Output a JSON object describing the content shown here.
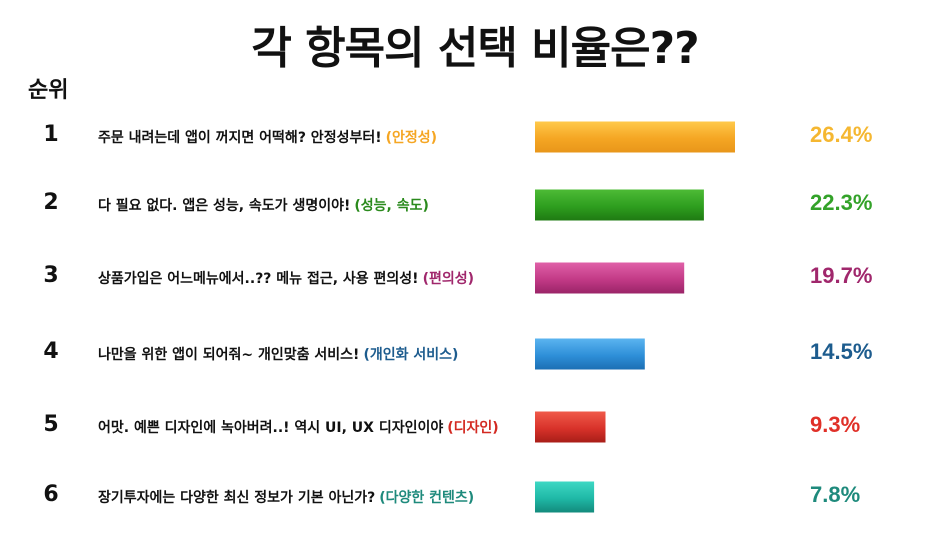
{
  "title": "각 항목의 선택 비율은??",
  "rank_header": "순위",
  "chart_data": {
    "type": "bar",
    "orientation": "horizontal",
    "title": "각 항목의 선택 비율은??",
    "xlim": [
      0,
      26.4
    ],
    "grid": false,
    "legend": "none",
    "items": [
      {
        "rank": "1",
        "text": "주문 내려는데 앱이 꺼지면 어떡해? 안정성부터!",
        "tag": "(안정성)",
        "value": 26.4,
        "label": "26.4%",
        "color": "#F5A623",
        "dark": "#E8961A",
        "light": "#FFC94A",
        "text_color": "#F5A623",
        "label_color": "#F5B731"
      },
      {
        "rank": "2",
        "text": "다 필요 없다. 앱은 성능, 속도가 생명이야!",
        "tag": "(성능, 속도)",
        "value": 22.3,
        "label": "22.3%",
        "color": "#2E9E1F",
        "dark": "#1F7A12",
        "light": "#4DBB36",
        "text_color": "#2A8A1C",
        "label_color": "#33A229"
      },
      {
        "rank": "3",
        "text": "상품가입은 어느메뉴에서..?? 메뉴 접근, 사용 편의성!",
        "tag": "(편의성)",
        "value": 19.7,
        "label": "19.7%",
        "color": "#C23A86",
        "dark": "#9A2468",
        "light": "#E060A8",
        "text_color": "#A0276C",
        "label_color": "#A0276C"
      },
      {
        "rank": "4",
        "text": "나만을 위한 앱이 되어줘~ 개인맞춤 서비스!",
        "tag": "(개인화 서비스)",
        "value": 14.5,
        "label": "14.5%",
        "color": "#2E8FD8",
        "dark": "#1C6FB4",
        "light": "#5BB4F0",
        "text_color": "#1D5C8E",
        "label_color": "#1D5C8E"
      },
      {
        "rank": "5",
        "text": "어맛. 예쁜 디자인에 녹아버려..! 역시 UI, UX 디자인이야",
        "tag": "(디자인)",
        "value": 9.3,
        "label": "9.3%",
        "color": "#D8322A",
        "dark": "#A81E18",
        "light": "#F05A4A",
        "text_color": "#D32A22",
        "label_color": "#E03028"
      },
      {
        "rank": "6",
        "text": "장기투자에는 다양한 최신 정보가 기본 아닌가?",
        "tag": "(다양한 컨텐츠)",
        "value": 7.8,
        "label": "7.8%",
        "color": "#1FB8A6",
        "dark": "#138A7C",
        "light": "#3ED8C4",
        "text_color": "#1E8A7C",
        "label_color": "#1E8A7C"
      }
    ]
  }
}
